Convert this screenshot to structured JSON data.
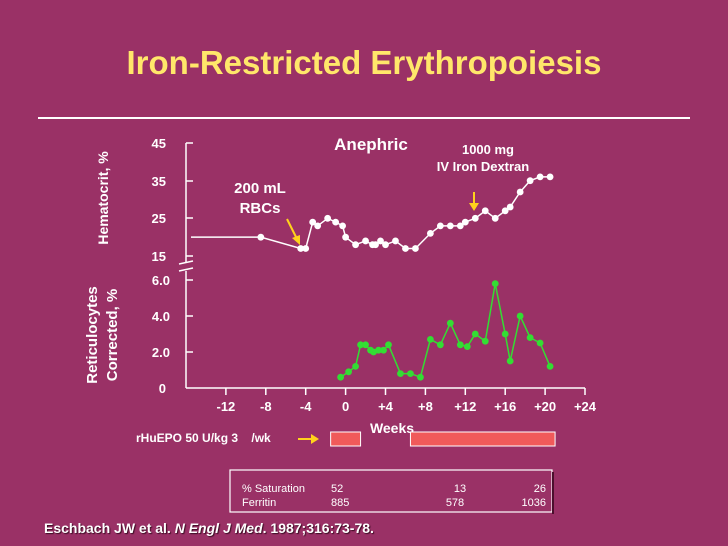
{
  "title": "Iron-Restricted Erythropoiesis",
  "colors": {
    "background": "#9a3166",
    "title": "#ffe76a",
    "hematocrit_series": "#ffffff",
    "reticulocyte_series": "#33dd33",
    "epo_bar": "#f05a5a",
    "arrow": "#ffd21c"
  },
  "chart_data": [
    {
      "type": "line",
      "name": "hematocrit",
      "ylabel": "Hematocrit, %",
      "yticks": [
        "45",
        "35",
        "25",
        "15"
      ],
      "ylim": [
        15,
        45
      ],
      "series": [
        {
          "x": [
            -15.5,
            -8.5,
            -4.5,
            -4.0,
            -3.3,
            -2.8,
            -1.8,
            -1.0,
            -0.3,
            0.0,
            1.0,
            2.0,
            2.7,
            3.0,
            3.5,
            4.0,
            5.0,
            6.0,
            7.0,
            8.5,
            9.5,
            10.5,
            11.5,
            12.0,
            13.0,
            14.0,
            15.0,
            16.0,
            16.5,
            17.5,
            18.5,
            19.5,
            20.5
          ],
          "y": [
            20,
            20,
            17,
            17,
            24,
            23,
            25,
            24,
            23,
            20,
            18,
            19,
            18,
            18,
            19,
            18,
            19,
            17,
            17,
            21,
            23,
            23,
            23,
            24,
            25,
            27,
            25,
            27,
            28,
            32,
            35,
            36,
            36
          ]
        }
      ],
      "annotations": [
        {
          "text": [
            "200 mL",
            "RBCs"
          ],
          "arrow_at_week": -4.5
        },
        {
          "text": [
            "1000 mg",
            "IV Iron Dextran"
          ],
          "arrow_at_week": 13
        },
        {
          "text": [
            "Anephric"
          ]
        }
      ]
    },
    {
      "type": "line",
      "name": "reticulocytes",
      "ylabel": [
        "Reticulocytes",
        "Corrected, %"
      ],
      "yticks": [
        "6.0",
        "4.0",
        "2.0",
        "0"
      ],
      "ylim": [
        0,
        6.0
      ],
      "xlabel": "Weeks",
      "xticks": [
        "-12",
        "-8",
        "-4",
        "0",
        "+4",
        "+8",
        "+12",
        "+16",
        "+20",
        "+24"
      ],
      "xlim": [
        -16,
        24
      ],
      "series": [
        {
          "x": [
            -0.5,
            0.3,
            1.0,
            1.5,
            2.0,
            2.5,
            2.8,
            3.3,
            3.8,
            4.3,
            5.5,
            6.5,
            7.5,
            8.5,
            9.5,
            10.5,
            11.5,
            12.2,
            13.0,
            14.0,
            15.0,
            16.0,
            16.5,
            17.5,
            18.5,
            19.5,
            20.5
          ],
          "y": [
            0.6,
            0.9,
            1.2,
            2.4,
            2.4,
            2.1,
            2.0,
            2.1,
            2.1,
            2.4,
            0.8,
            0.8,
            0.6,
            2.7,
            2.4,
            3.6,
            2.4,
            2.3,
            3.0,
            2.6,
            5.8,
            3.0,
            1.5,
            4.0,
            2.8,
            2.5,
            1.2
          ]
        }
      ]
    }
  ],
  "epo": {
    "label": "rHuEPO 50 U/kg 3    /wk",
    "periods": [
      [
        -1.5,
        1.5
      ],
      [
        6.5,
        21
      ]
    ]
  },
  "table": {
    "rows": [
      {
        "label": "% Saturation",
        "values": [
          "52",
          "13",
          "26"
        ]
      },
      {
        "label": "Ferritin",
        "values": [
          "885",
          "578",
          "1036"
        ]
      }
    ]
  },
  "citation": {
    "authors": "Eschbach JW et al.",
    "journal": "N Engl J Med",
    "rest": ". 1987;316:73-78."
  }
}
